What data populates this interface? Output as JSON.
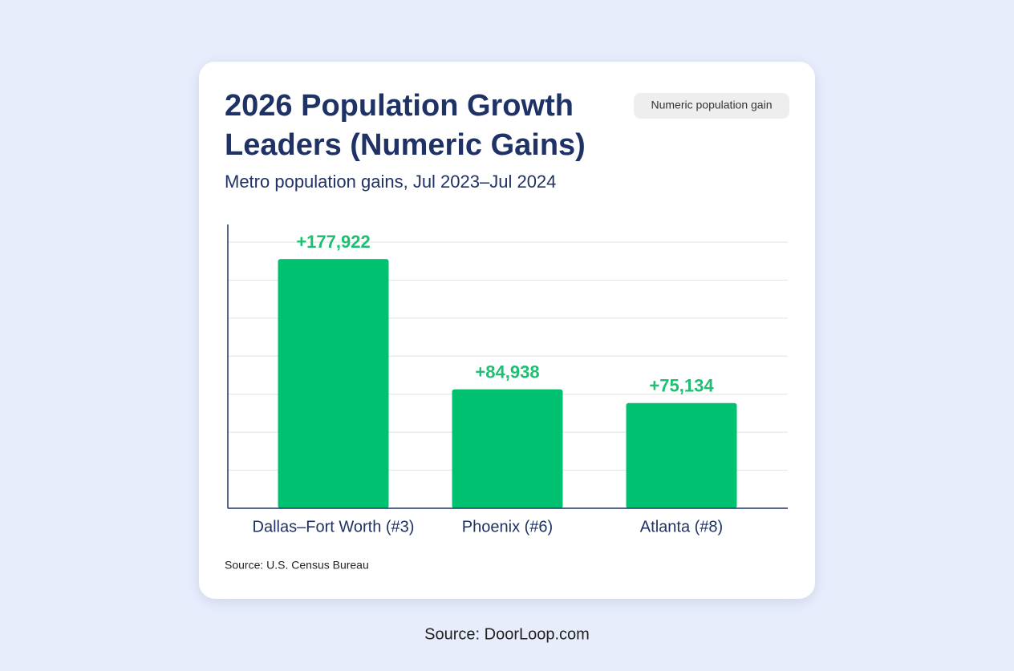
{
  "chart_data": {
    "type": "bar",
    "title_lines": [
      "2026 Population Growth",
      "Leaders (Numeric Gains)"
    ],
    "subtitle": "Metro population gains, Jul 2023–Jul 2024",
    "badge": "Numeric population gain",
    "categories": [
      "Dallas–Fort Worth (#3)",
      "Phoenix (#6)",
      "Atlanta (#8)"
    ],
    "values": [
      177922,
      84938,
      75134
    ],
    "value_labels": [
      "+177,922",
      "+84,938",
      "+75,134"
    ],
    "color": "#00c170",
    "ylim": [
      0,
      190000
    ],
    "source": "Source: U.S. Census Bureau"
  },
  "footer": "Source: DoorLoop.com"
}
